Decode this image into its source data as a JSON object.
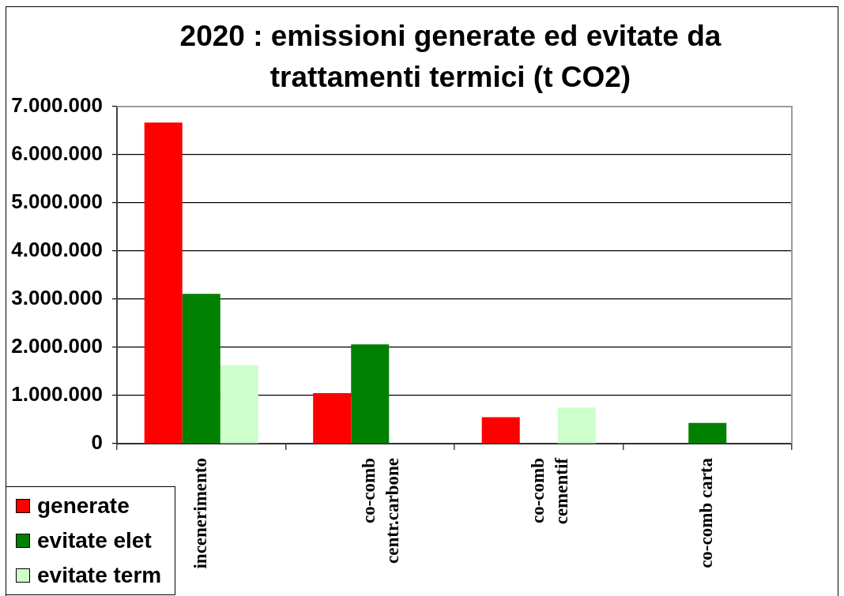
{
  "chart_data": {
    "type": "bar",
    "title": "2020 : emissioni generate ed evitate da trattamenti termici (t CO2)",
    "categories": [
      "incenerimento",
      "co-comb centr.carbone",
      "co-comb cementif",
      "co-comb carta"
    ],
    "series": [
      {
        "name": "generate",
        "color": "#ff0000",
        "values": [
          6670000,
          1050000,
          550000,
          null
        ]
      },
      {
        "name": "evitate elet",
        "color": "#008000",
        "values": [
          3110000,
          2060000,
          null,
          430000
        ]
      },
      {
        "name": "evitate term",
        "color": "#ccffcc",
        "values": [
          1630000,
          null,
          750000,
          null
        ]
      }
    ],
    "ylim": [
      0,
      7000000
    ],
    "yticks": [
      0,
      {
        "value": 1000000,
        "label": "1.000.000"
      },
      {
        "value": 2000000,
        "label": "2.000.000"
      },
      {
        "value": 3000000,
        "label": "3.000.000"
      },
      {
        "value": 4000000,
        "label": "4.000.000"
      },
      {
        "value": 5000000,
        "label": "5.000.000"
      },
      {
        "value": 6000000,
        "label": "6.000.000"
      },
      {
        "value": 7000000,
        "label": "7.000.000"
      }
    ],
    "grid": "y",
    "legend": "bottom left"
  }
}
